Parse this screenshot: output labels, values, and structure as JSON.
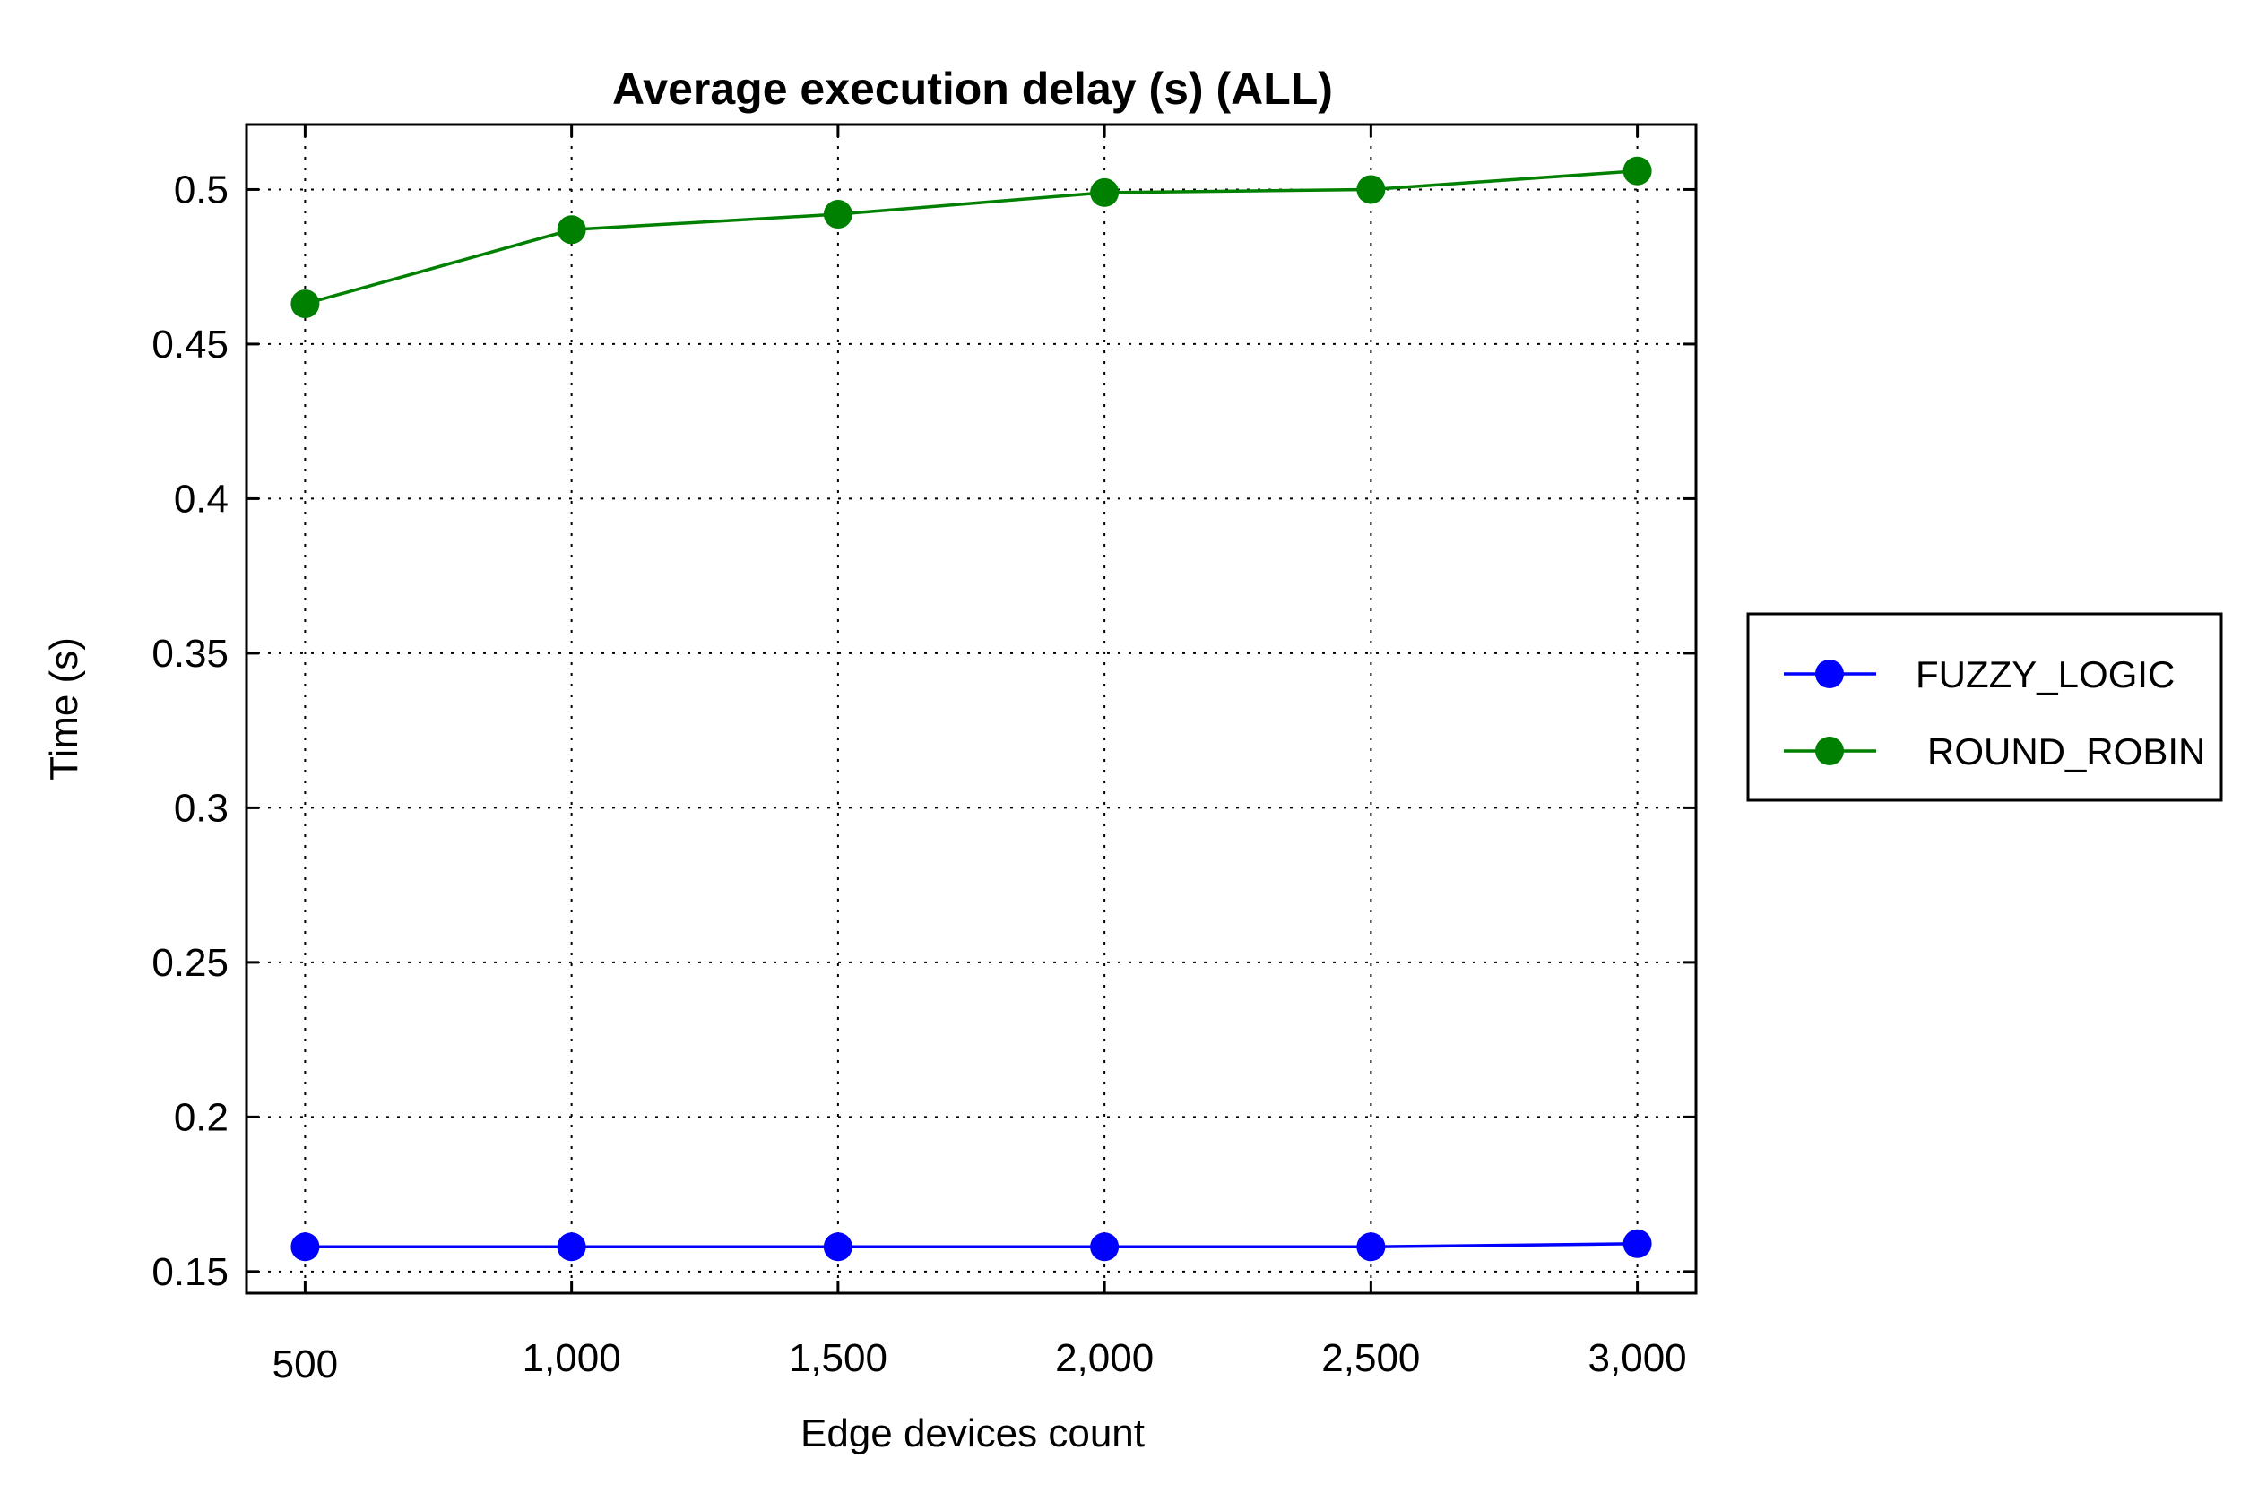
{
  "chart_data": {
    "type": "line",
    "title": "Average execution delay (s) (ALL)",
    "xlabel": "Edge devices count",
    "ylabel": "Time (s)",
    "x": [
      500,
      1000,
      1500,
      2000,
      2500,
      3000
    ],
    "x_tick_labels": [
      "500",
      "1,000",
      "1,500",
      "2,000",
      "2,500",
      "3,000"
    ],
    "xlim": [
      390,
      3110
    ],
    "ylim": [
      0.143,
      0.521
    ],
    "y_ticks": [
      0.15,
      0.2,
      0.25,
      0.3,
      0.35,
      0.4,
      0.45,
      0.5
    ],
    "y_tick_labels": [
      "0.15",
      "0.2",
      "0.25",
      "0.3",
      "0.35",
      "0.4",
      "0.45",
      "0.5"
    ],
    "grid": true,
    "legend_position": "right",
    "series": [
      {
        "name": "FUZZY_LOGIC",
        "color": "#0000ff",
        "values": [
          0.158,
          0.158,
          0.158,
          0.158,
          0.158,
          0.159
        ]
      },
      {
        "name": "ROUND_ROBIN",
        "color": "#008000",
        "values": [
          0.463,
          0.487,
          0.492,
          0.499,
          0.5,
          0.506
        ]
      }
    ]
  }
}
